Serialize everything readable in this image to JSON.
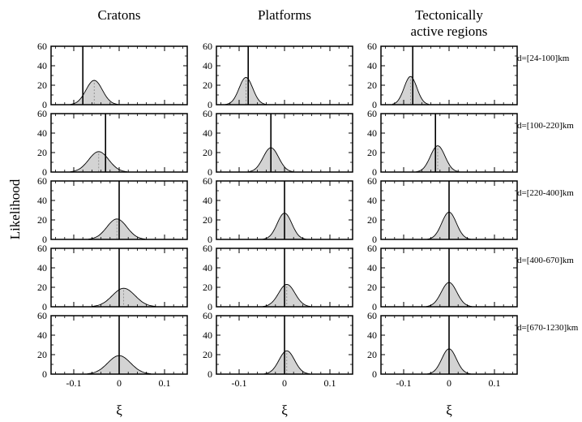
{
  "chart_data": {
    "type": "area",
    "ylabel": "Likelihood",
    "xlabel": "ξ",
    "columns": [
      "Cratons",
      "Platforms",
      "Tectonically active regions"
    ],
    "column_title_lines": [
      [
        "Cratons"
      ],
      [
        "Platforms"
      ],
      [
        "Tectonically",
        "active regions"
      ]
    ],
    "rows": [
      "d=[24-100]km",
      "d=[100-220]km",
      "d=[220-400]km",
      "d=[400-670]km",
      "d=[670-1230]km"
    ],
    "xlim": [
      -0.15,
      0.15
    ],
    "ylim": [
      0,
      60
    ],
    "xticks": [
      -0.1,
      0,
      0.1
    ],
    "xtick_labels": [
      "-0.1",
      "0",
      "0.1"
    ],
    "yticks": [
      0,
      20,
      40,
      60
    ],
    "ytick_labels": [
      "0",
      "20",
      "40",
      "60"
    ],
    "distribution_shape": "approximately gaussian, shaded grey",
    "panels": [
      [
        {
          "peak_x": -0.055,
          "peak_y": 25,
          "sigma": 0.018,
          "marker_x": -0.08
        },
        {
          "peak_x": -0.085,
          "peak_y": 28,
          "sigma": 0.015,
          "marker_x": -0.08
        },
        {
          "peak_x": -0.085,
          "peak_y": 29,
          "sigma": 0.014,
          "marker_x": -0.08
        }
      ],
      [
        {
          "peak_x": -0.045,
          "peak_y": 21,
          "sigma": 0.022,
          "marker_x": -0.03
        },
        {
          "peak_x": -0.03,
          "peak_y": 25,
          "sigma": 0.017,
          "marker_x": -0.03
        },
        {
          "peak_x": -0.025,
          "peak_y": 27,
          "sigma": 0.016,
          "marker_x": -0.03
        }
      ],
      [
        {
          "peak_x": -0.005,
          "peak_y": 21,
          "sigma": 0.022,
          "marker_x": 0
        },
        {
          "peak_x": 0,
          "peak_y": 27,
          "sigma": 0.016,
          "marker_x": 0
        },
        {
          "peak_x": 0,
          "peak_y": 28,
          "sigma": 0.016,
          "marker_x": 0
        }
      ],
      [
        {
          "peak_x": 0.01,
          "peak_y": 19,
          "sigma": 0.025,
          "marker_x": 0
        },
        {
          "peak_x": 0.005,
          "peak_y": 23,
          "sigma": 0.018,
          "marker_x": 0
        },
        {
          "peak_x": 0,
          "peak_y": 25,
          "sigma": 0.017,
          "marker_x": 0
        }
      ],
      [
        {
          "peak_x": 0,
          "peak_y": 19,
          "sigma": 0.025,
          "marker_x": 0
        },
        {
          "peak_x": 0.005,
          "peak_y": 24,
          "sigma": 0.017,
          "marker_x": 0
        },
        {
          "peak_x": 0,
          "peak_y": 26,
          "sigma": 0.016,
          "marker_x": 0
        }
      ]
    ]
  }
}
